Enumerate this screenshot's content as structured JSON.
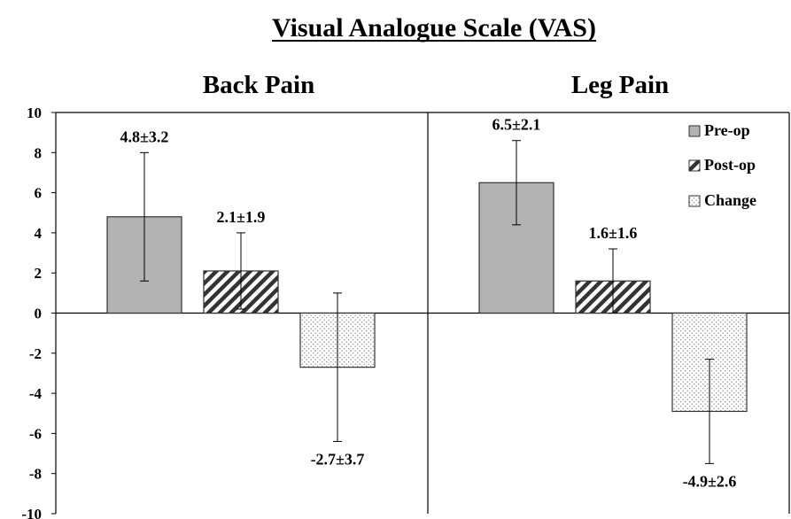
{
  "chart_data": {
    "type": "bar",
    "title": "Visual Analogue Scale (VAS)",
    "panels": [
      "Back Pain",
      "Leg Pain"
    ],
    "series": [
      {
        "name": "Pre-op",
        "values": [
          4.8,
          6.5
        ],
        "errors": [
          3.2,
          2.1
        ],
        "labels": [
          "4.8±3.2",
          "6.5±2.1"
        ],
        "pattern": "solid"
      },
      {
        "name": "Post-op",
        "values": [
          2.1,
          1.6
        ],
        "errors": [
          1.9,
          1.6
        ],
        "labels": [
          "2.1±1.9",
          "1.6±1.6"
        ],
        "pattern": "hatch"
      },
      {
        "name": "Change",
        "values": [
          -2.7,
          -4.9
        ],
        "errors": [
          3.7,
          2.6
        ],
        "labels": [
          "-2.7±3.7",
          "-4.9±2.6"
        ],
        "pattern": "dotted"
      }
    ],
    "ylim": [
      -10,
      10
    ],
    "yticks": [
      10,
      8,
      6,
      4,
      2,
      0,
      -2,
      -4,
      -6,
      -8,
      -10
    ],
    "grid": false,
    "legend_position": "top-right",
    "colors": {
      "pre_op": "#b3b3b3",
      "bar_stroke": "#333333"
    }
  }
}
